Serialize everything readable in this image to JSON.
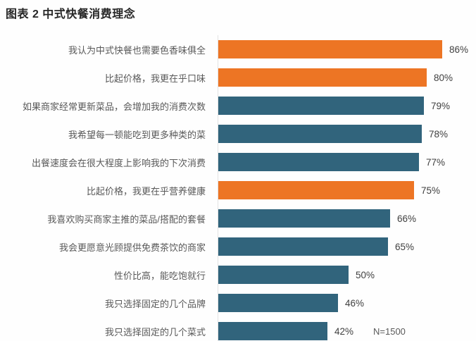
{
  "title": "图表 2  中式快餐消费理念",
  "footnote": "N=1500",
  "colors": {
    "orange": "#ED7524",
    "teal": "#31647C",
    "title_text": "#262626",
    "label_text": "#595959",
    "value_text": "#404040",
    "axis_line": "#e3e3e3",
    "background": "#fefefe"
  },
  "chart_data": {
    "type": "bar",
    "orientation": "horizontal",
    "title": "图表 2  中式快餐消费理念",
    "unit": "%",
    "xlim": [
      0,
      100
    ],
    "sample_size": "N=1500",
    "grid": false,
    "legend": false,
    "categories": [
      "我认为中式快餐也需要色香味俱全",
      "比起价格，我更在乎口味",
      "如果商家经常更新菜品，会增加我的消费次数",
      "我希望每一顿能吃到更多种类的菜",
      "出餐速度会在很大程度上影响我的下次消费",
      "比起价格，我更在乎营养健康",
      "我喜欢购买商家主推的菜品/搭配的套餐",
      "我会更愿意光顾提供免费茶饮的商家",
      "性价比高，能吃饱就行",
      "我只选择固定的几个品牌",
      "我只选择固定的几个菜式"
    ],
    "values": [
      86,
      80,
      79,
      78,
      77,
      75,
      66,
      65,
      50,
      46,
      42
    ],
    "value_labels": [
      "86%",
      "80%",
      "79%",
      "78%",
      "77%",
      "75%",
      "66%",
      "65%",
      "50%",
      "46%",
      "42%"
    ],
    "bar_color_keys": [
      "orange",
      "orange",
      "teal",
      "teal",
      "teal",
      "orange",
      "teal",
      "teal",
      "teal",
      "teal",
      "teal"
    ]
  }
}
